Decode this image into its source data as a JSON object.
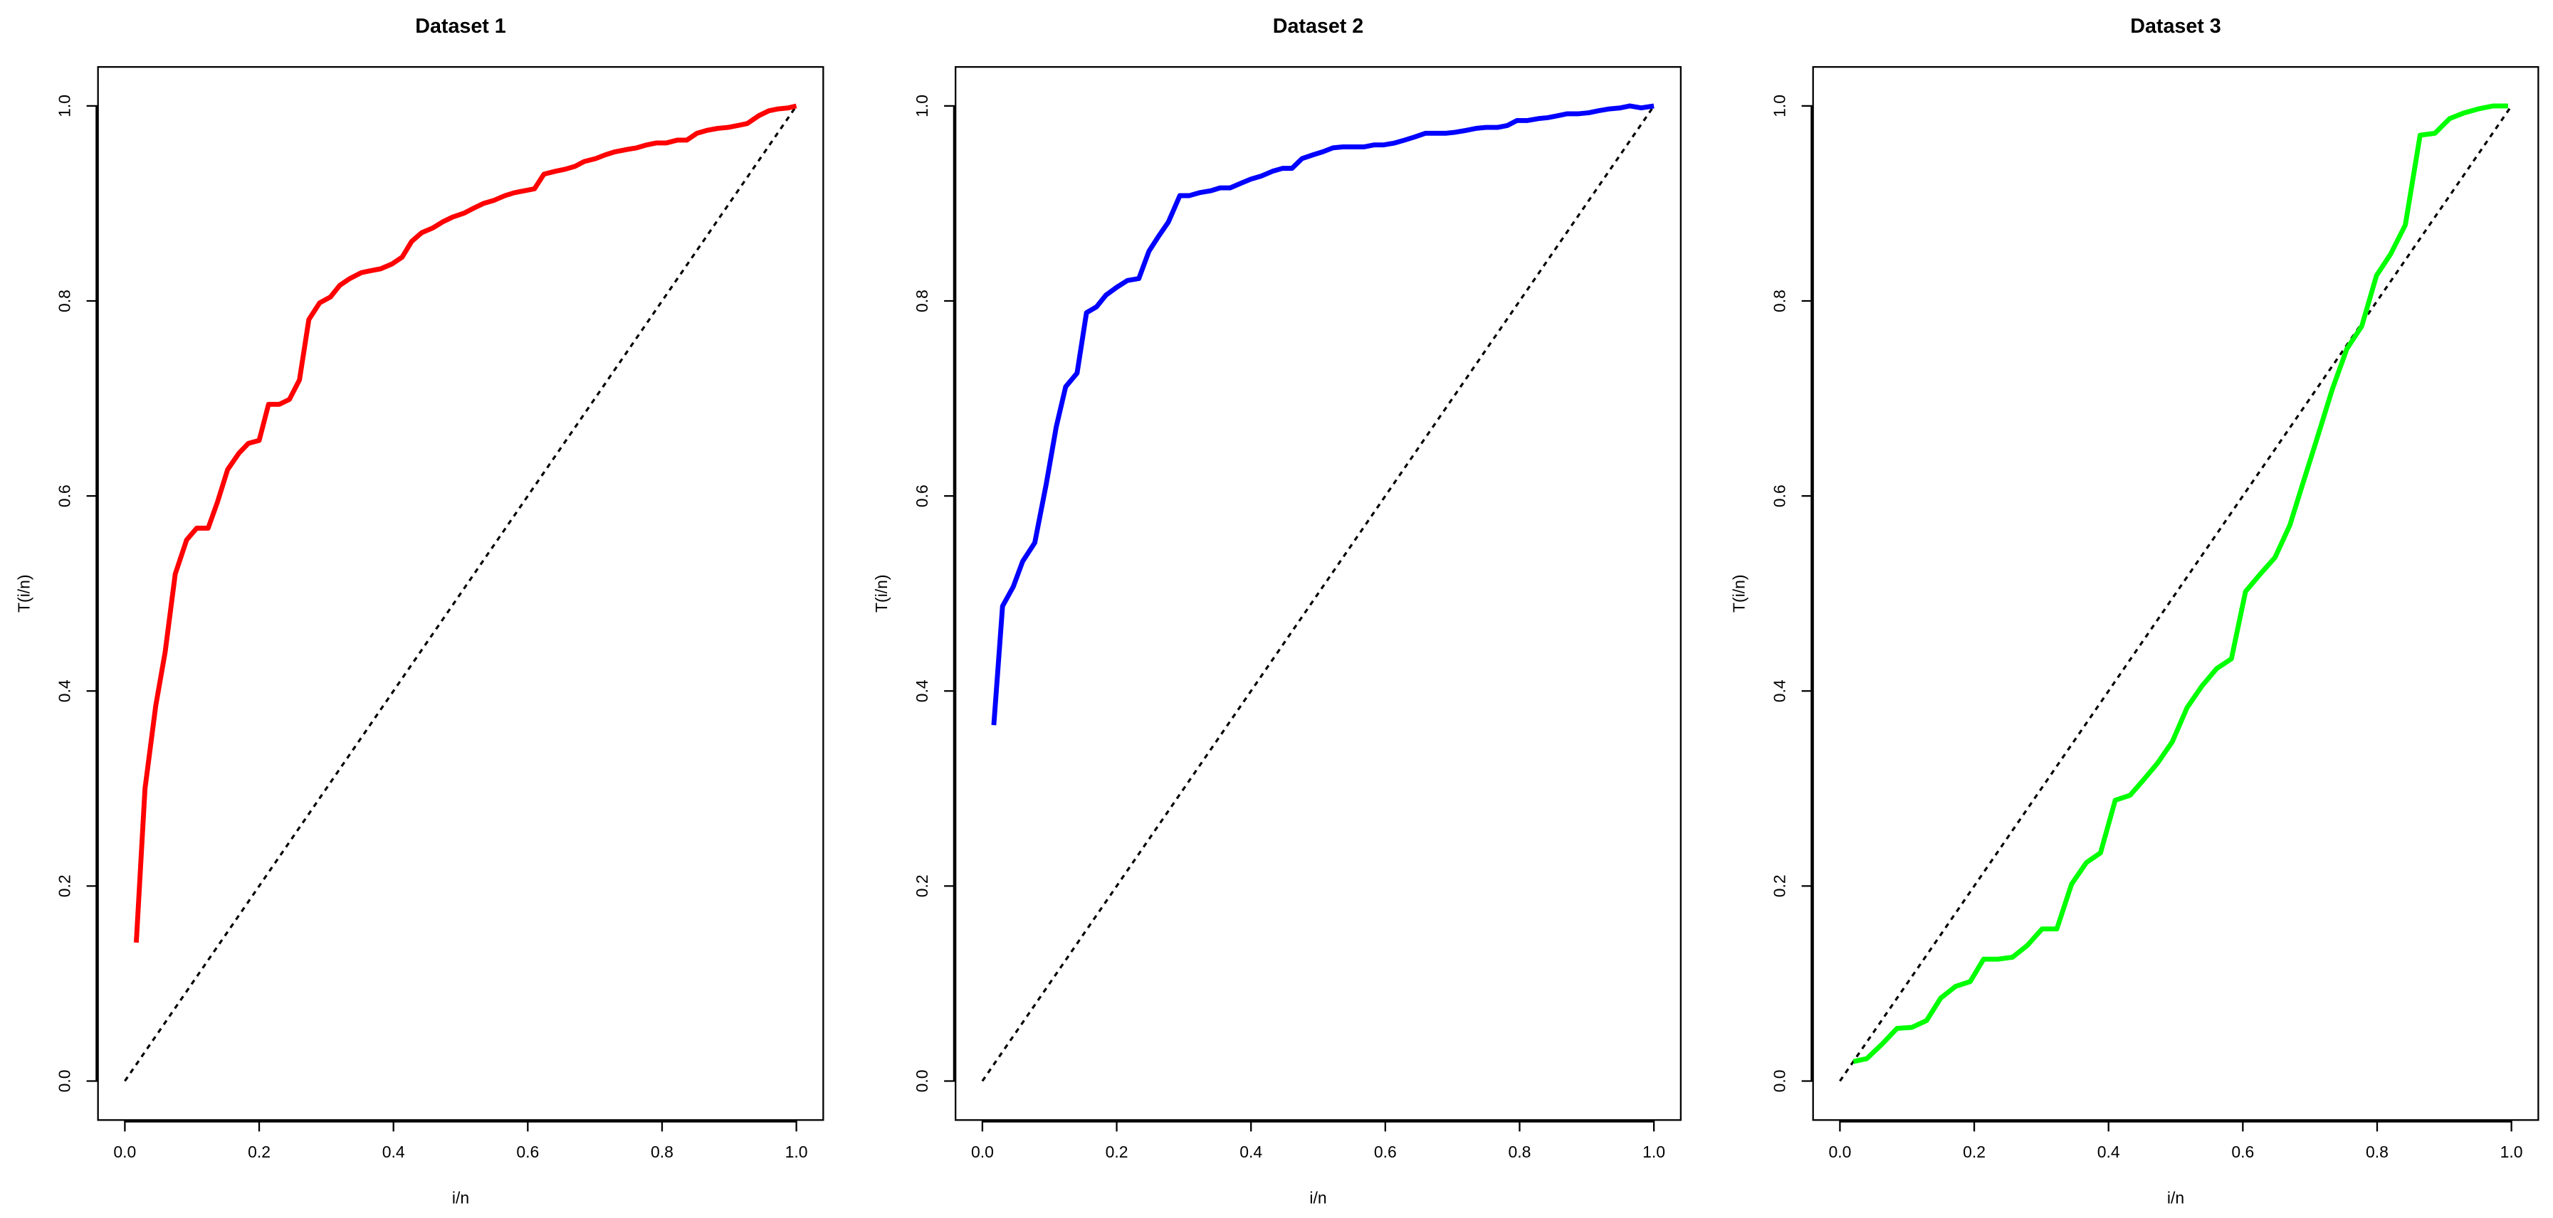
{
  "chart_data": [
    {
      "type": "line",
      "title": "Dataset 1",
      "x_label": "i/n",
      "y_label": "T(i/n)",
      "color": "#ff0000",
      "x": [
        0.017,
        0.03,
        0.046,
        0.06,
        0.075,
        0.092,
        0.107,
        0.124,
        0.138,
        0.153,
        0.17,
        0.184,
        0.2,
        0.214,
        0.23,
        0.245,
        0.26,
        0.274,
        0.29,
        0.306,
        0.32,
        0.335,
        0.352,
        0.366,
        0.381,
        0.398,
        0.413,
        0.427,
        0.442,
        0.459,
        0.473,
        0.488,
        0.505,
        0.519,
        0.534,
        0.549,
        0.566,
        0.58,
        0.595,
        0.61,
        0.624,
        0.641,
        0.655,
        0.67,
        0.684,
        0.701,
        0.716,
        0.73,
        0.745,
        0.762,
        0.777,
        0.791,
        0.806,
        0.823,
        0.837,
        0.852,
        0.867,
        0.883,
        0.898,
        0.913,
        0.927,
        0.944,
        0.959,
        0.973,
        0.988,
        1.0
      ],
      "values": [
        0.142,
        0.3,
        0.385,
        0.44,
        0.52,
        0.555,
        0.567,
        0.567,
        0.594,
        0.627,
        0.644,
        0.654,
        0.657,
        0.694,
        0.694,
        0.699,
        0.719,
        0.781,
        0.798,
        0.804,
        0.816,
        0.823,
        0.829,
        0.831,
        0.833,
        0.838,
        0.845,
        0.861,
        0.87,
        0.875,
        0.881,
        0.886,
        0.89,
        0.895,
        0.9,
        0.903,
        0.908,
        0.911,
        0.913,
        0.915,
        0.93,
        0.933,
        0.935,
        0.938,
        0.943,
        0.946,
        0.95,
        0.953,
        0.955,
        0.957,
        0.96,
        0.962,
        0.962,
        0.965,
        0.965,
        0.972,
        0.975,
        0.977,
        0.978,
        0.98,
        0.982,
        0.99,
        0.995,
        0.997,
        0.998,
        1.0
      ],
      "reference_line": {
        "x": [
          0,
          1
        ],
        "values": [
          0,
          1
        ],
        "color": "#000000",
        "dashed": true
      },
      "xlim": [
        -0.04,
        1.04
      ],
      "ylim": [
        -0.04,
        1.04
      ],
      "xticks": [
        {
          "value": 0,
          "label": "0.0"
        },
        0.2,
        0.4,
        0.6,
        0.8,
        {
          "value": 1,
          "label": "1.0"
        }
      ],
      "yticks": [
        {
          "value": 0,
          "label": "0.0"
        },
        0.2,
        0.4,
        0.6,
        0.8,
        {
          "value": 1,
          "label": "1.0"
        }
      ]
    },
    {
      "type": "line",
      "title": "Dataset 2",
      "x_label": "i/n",
      "y_label": "T(i/n)",
      "color": "#0000ff",
      "x": [
        0.017,
        0.03,
        0.046,
        0.06,
        0.078,
        0.095,
        0.11,
        0.124,
        0.141,
        0.155,
        0.17,
        0.184,
        0.2,
        0.216,
        0.233,
        0.248,
        0.262,
        0.277,
        0.294,
        0.308,
        0.323,
        0.34,
        0.354,
        0.369,
        0.386,
        0.4,
        0.415,
        0.432,
        0.447,
        0.461,
        0.476,
        0.493,
        0.507,
        0.522,
        0.537,
        0.553,
        0.568,
        0.583,
        0.597,
        0.614,
        0.629,
        0.643,
        0.66,
        0.675,
        0.69,
        0.704,
        0.721,
        0.735,
        0.75,
        0.767,
        0.782,
        0.796,
        0.811,
        0.828,
        0.842,
        0.857,
        0.871,
        0.888,
        0.903,
        0.917,
        0.934,
        0.95,
        0.964,
        0.981,
        1.0
      ],
      "values": [
        0.365,
        0.487,
        0.507,
        0.533,
        0.552,
        0.612,
        0.671,
        0.712,
        0.726,
        0.788,
        0.794,
        0.806,
        0.814,
        0.821,
        0.823,
        0.851,
        0.866,
        0.881,
        0.908,
        0.908,
        0.911,
        0.913,
        0.916,
        0.916,
        0.921,
        0.925,
        0.928,
        0.933,
        0.936,
        0.936,
        0.946,
        0.95,
        0.953,
        0.957,
        0.958,
        0.958,
        0.958,
        0.96,
        0.96,
        0.962,
        0.965,
        0.968,
        0.972,
        0.972,
        0.972,
        0.973,
        0.975,
        0.977,
        0.978,
        0.978,
        0.98,
        0.985,
        0.985,
        0.987,
        0.988,
        0.99,
        0.992,
        0.992,
        0.993,
        0.995,
        0.997,
        0.998,
        1.0,
        0.998,
        1.0
      ],
      "reference_line": {
        "x": [
          0,
          1
        ],
        "values": [
          0,
          1
        ],
        "color": "#000000",
        "dashed": true
      },
      "xlim": [
        -0.04,
        1.04
      ],
      "ylim": [
        -0.04,
        1.04
      ],
      "xticks": [
        {
          "value": 0,
          "label": "0.0"
        },
        0.2,
        0.4,
        0.6,
        0.8,
        {
          "value": 1,
          "label": "1.0"
        }
      ],
      "yticks": [
        {
          "value": 0,
          "label": "0.0"
        },
        0.2,
        0.4,
        0.6,
        0.8,
        {
          "value": 1,
          "label": "1.0"
        }
      ]
    },
    {
      "type": "line",
      "title": "Dataset 3",
      "x_label": "i/n",
      "y_label": "T(i/n)",
      "color": "#00ff00",
      "x": [
        0.02,
        0.04,
        0.063,
        0.085,
        0.107,
        0.129,
        0.15,
        0.172,
        0.194,
        0.214,
        0.235,
        0.257,
        0.279,
        0.301,
        0.323,
        0.345,
        0.367,
        0.388,
        0.41,
        0.432,
        0.451,
        0.473,
        0.495,
        0.517,
        0.539,
        0.561,
        0.583,
        0.604,
        0.626,
        0.648,
        0.67,
        0.689,
        0.711,
        0.733,
        0.755,
        0.777,
        0.799,
        0.82,
        0.842,
        0.864,
        0.886,
        0.908,
        0.93,
        0.951,
        0.973,
        0.995
      ],
      "values": [
        0.02,
        0.023,
        0.038,
        0.054,
        0.055,
        0.062,
        0.085,
        0.097,
        0.102,
        0.125,
        0.125,
        0.127,
        0.139,
        0.156,
        0.156,
        0.202,
        0.224,
        0.234,
        0.288,
        0.293,
        0.308,
        0.326,
        0.348,
        0.383,
        0.405,
        0.423,
        0.433,
        0.502,
        0.52,
        0.537,
        0.57,
        0.612,
        0.66,
        0.709,
        0.751,
        0.774,
        0.826,
        0.848,
        0.878,
        0.97,
        0.972,
        0.987,
        0.993,
        0.997,
        1.0,
        1.0
      ],
      "reference_line": {
        "x": [
          0,
          1
        ],
        "values": [
          0,
          1
        ],
        "color": "#000000",
        "dashed": true
      },
      "xlim": [
        -0.04,
        1.04
      ],
      "ylim": [
        -0.04,
        1.04
      ],
      "xticks": [
        {
          "value": 0,
          "label": "0.0"
        },
        0.2,
        0.4,
        0.6,
        0.8,
        {
          "value": 1,
          "label": "1.0"
        }
      ],
      "yticks": [
        {
          "value": 0,
          "label": "0.0"
        },
        0.2,
        0.4,
        0.6,
        0.8,
        {
          "value": 1,
          "label": "1.0"
        }
      ]
    }
  ]
}
